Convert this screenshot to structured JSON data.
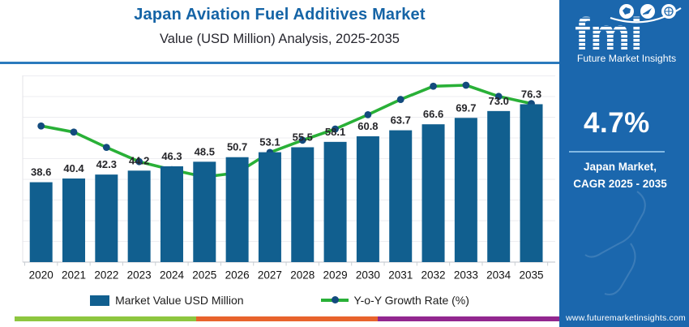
{
  "header": {
    "title": "Japan Aviation Fuel Additives Market",
    "subtitle": "Value (USD Million) Analysis, 2025-2035"
  },
  "chart_data": {
    "type": "bar+line",
    "title": "Japan Aviation Fuel Additives Market Value (USD Million) Analysis, 2025-2035",
    "categories": [
      "2020",
      "2021",
      "2022",
      "2023",
      "2024",
      "2025",
      "2026",
      "2027",
      "2028",
      "2029",
      "2030",
      "2031",
      "2032",
      "2033",
      "2034",
      "2035"
    ],
    "series": [
      {
        "name": "Market Value USD Million",
        "type": "bar",
        "color": "#115f8f",
        "values": [
          38.6,
          40.4,
          42.3,
          44.2,
          46.3,
          48.5,
          50.7,
          53.1,
          55.5,
          58.1,
          60.8,
          63.7,
          66.6,
          69.7,
          73.0,
          76.3
        ],
        "value_labels": [
          "38.6",
          "40.4",
          "42.3",
          "44.2",
          "46.3",
          "48.5",
          "50.7",
          "53.1",
          "55.5",
          "58.1",
          "60.8",
          "63.7",
          "66.6",
          "69.7",
          "73.0",
          "76.3"
        ]
      },
      {
        "name": "Y-o-Y Growth Rate (%)",
        "type": "line",
        "color": "#29b037",
        "marker_color": "#134b7e",
        "values_estimated": [
          4.9,
          4.84,
          4.69,
          4.55,
          4.47,
          4.4,
          4.44,
          4.64,
          4.76,
          4.87,
          5.01,
          5.16,
          5.29,
          5.3,
          5.19,
          5.12
        ]
      }
    ],
    "xlabel": "",
    "ylabel": "",
    "ylim": [
      0,
      90
    ],
    "y2lim": [
      4.4,
      5.3
    ],
    "grid": true,
    "legend_position": "bottom"
  },
  "legend": [
    {
      "label": "Market Value USD Million",
      "swatch": "bar",
      "color": "#115f8f"
    },
    {
      "label": "Y-o-Y Growth Rate (%)",
      "swatch": "line",
      "color": "#29b037",
      "marker_color": "#134b7e"
    }
  ],
  "panel": {
    "bg_color": "#1b67ad",
    "logo": {
      "brand": "fmi",
      "brand_name": "Future Market Insights",
      "icons": [
        "map-icon",
        "plane-icon",
        "globe-icon"
      ]
    },
    "stat": {
      "value": "4.7%",
      "label_line1": "Japan Market,",
      "label_line2": "CAGR 2025 - 2035"
    },
    "website": "www.futuremarketinsights.com"
  },
  "footer_stripe_colors": [
    "#8dc63f",
    "#e8632c",
    "#92278f"
  ]
}
